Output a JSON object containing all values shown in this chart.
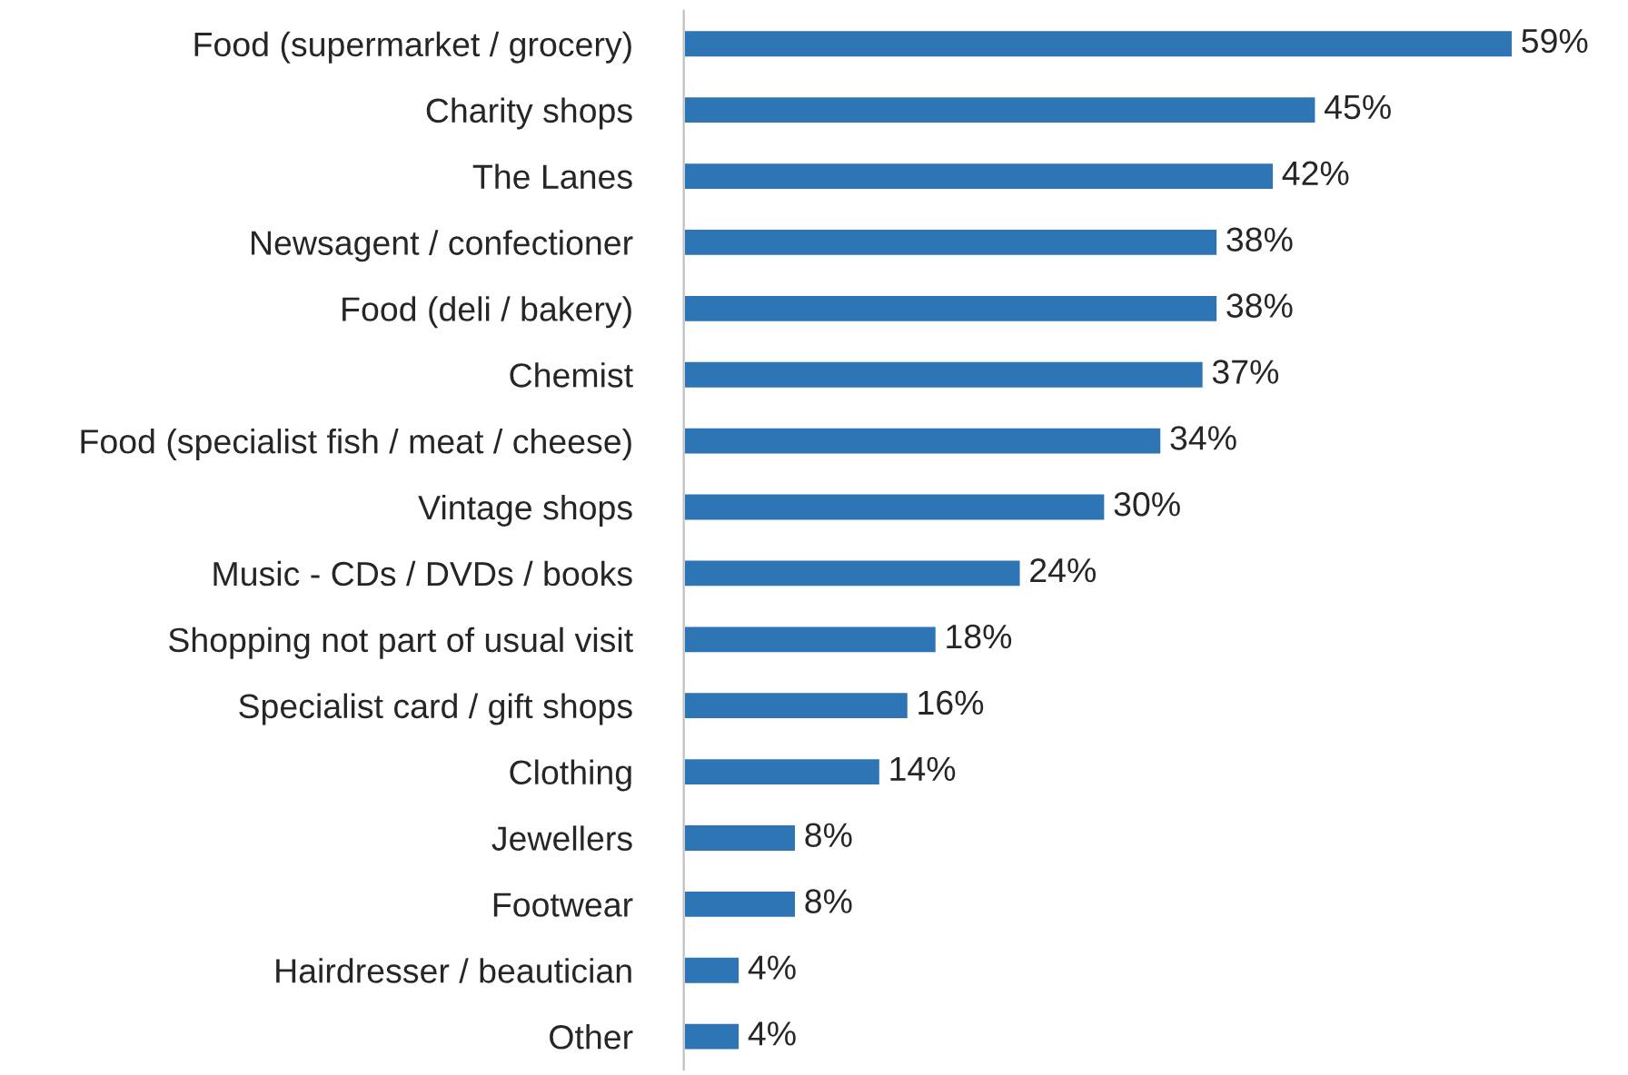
{
  "chart_data": {
    "type": "bar",
    "orientation": "horizontal",
    "categories": [
      "Food (supermarket / grocery)",
      "Charity shops",
      "The Lanes",
      "Newsagent / confectioner",
      "Food (deli / bakery)",
      "Chemist",
      "Food (specialist fish / meat / cheese)",
      "Vintage shops",
      "Music - CDs / DVDs / books",
      "Shopping not part of usual visit",
      "Specialist card / gift shops",
      "Clothing",
      "Jewellers",
      "Footwear",
      "Hairdresser / beautician",
      "Other"
    ],
    "values": [
      59,
      45,
      42,
      38,
      38,
      37,
      34,
      30,
      24,
      18,
      16,
      14,
      8,
      8,
      4,
      4
    ],
    "value_labels": [
      "59%",
      "45%",
      "42%",
      "38%",
      "38%",
      "37%",
      "34%",
      "30%",
      "24%",
      "18%",
      "16%",
      "14%",
      "8%",
      "8%",
      "4%",
      "4%"
    ],
    "color": "#2e75b6",
    "grid": false,
    "legend": false
  }
}
